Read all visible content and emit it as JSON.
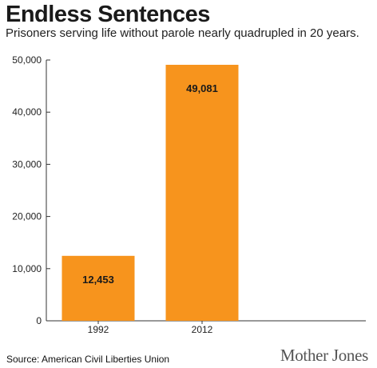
{
  "header": {
    "title": "Endless Sentences",
    "subtitle": "Prisoners serving life without parole nearly quadrupled in 20 years."
  },
  "footer": {
    "source": "Source: American Civil Liberties Union",
    "brand": "Mother Jones"
  },
  "colors": {
    "bar": "#F7941D",
    "axis": "#333333",
    "gridline": "#cccccc"
  },
  "chart_data": {
    "type": "bar",
    "title": "Endless Sentences",
    "subtitle": "Prisoners serving life without parole nearly quadrupled in 20 years.",
    "categories": [
      "1992",
      "2012"
    ],
    "values": [
      12453,
      49081
    ],
    "value_labels": [
      "12,453",
      "49,081"
    ],
    "ylim": [
      0,
      50000
    ],
    "yticks": [
      0,
      10000,
      20000,
      30000,
      40000,
      50000
    ],
    "ytick_labels": [
      "0",
      "10,000",
      "20,000",
      "30,000",
      "40,000",
      "50,000"
    ],
    "xlabel": "",
    "ylabel": "",
    "grid": false,
    "legend": "none"
  }
}
